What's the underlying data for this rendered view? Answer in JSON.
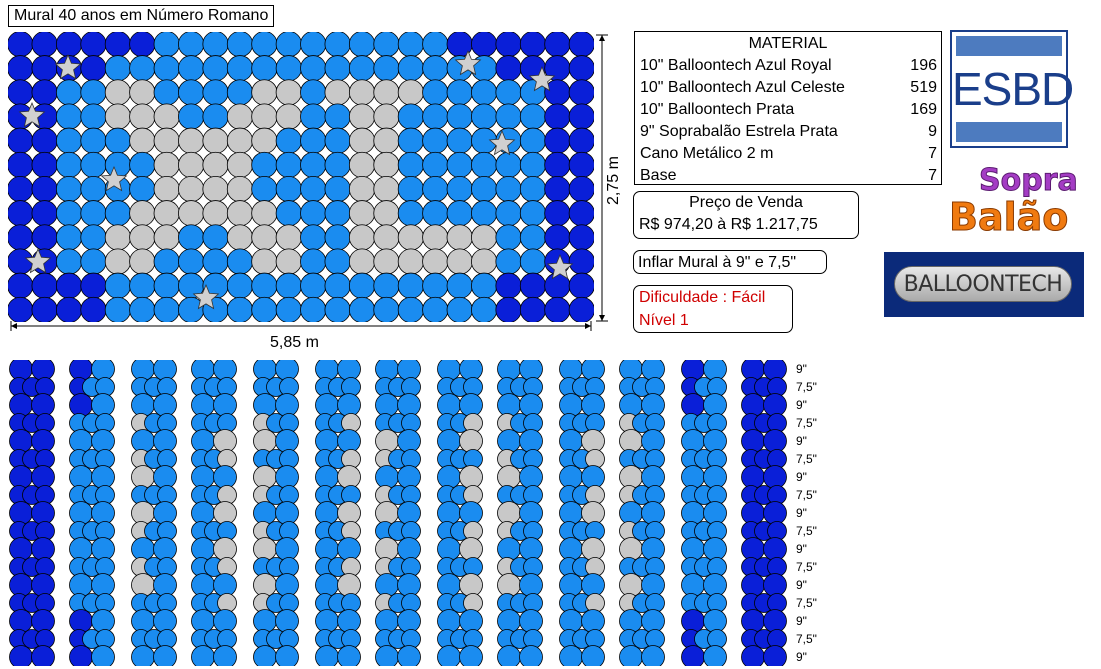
{
  "title": "Mural 40 anos em Número Romano",
  "dimensions": {
    "width": "5,85 m",
    "height": "2,75 m"
  },
  "material": {
    "heading": "MATERIAL",
    "items": [
      {
        "label": "10\" Balloontech Azul Royal",
        "qty": "196"
      },
      {
        "label": "10\" Balloontech Azul Celeste",
        "qty": "519"
      },
      {
        "label": "10\" Balloontech Prata",
        "qty": "169"
      },
      {
        "label": "9\" Soprabalão Estrela Prata",
        "qty": "9"
      },
      {
        "label": "Cano Metálico 2 m",
        "qty": "7"
      },
      {
        "label": "Base",
        "qty": "7"
      }
    ]
  },
  "price": {
    "label": "Preço de Venda",
    "value": "R$ 974,20 à R$ 1.217,75"
  },
  "inflate": "Inflar Mural à 9\" e 7,5\"",
  "difficulty": {
    "line1": "Dificuldade : Fácil",
    "line2": "Nível 1"
  },
  "logos": {
    "esbd": "ESBD",
    "sopra_top": "Sopra",
    "sopra_bottom": "Balão",
    "balloontech": "BALLOONTECH"
  },
  "sizes": [
    "9\"",
    "7,5\"",
    "9\"",
    "7,5\"",
    "9\"",
    "7,5\"",
    "9\"",
    "7,5\"",
    "9\"",
    "7,5\"",
    "9\"",
    "7,5\"",
    "9\"",
    "7,5\"",
    "9\"",
    "7,5\"",
    "9\""
  ],
  "colors": {
    "royal": "#0a1fd8",
    "celeste": "#1a8cf0",
    "prata": "#c8c8c8"
  }
}
